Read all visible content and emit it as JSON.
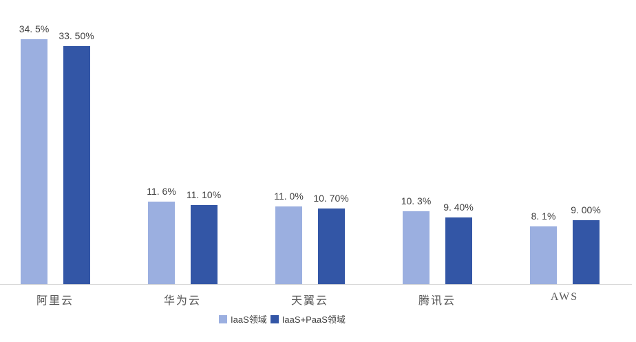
{
  "chart_data": {
    "type": "bar",
    "title": "",
    "xlabel": "",
    "ylabel": "",
    "grid": false,
    "legend_position": "bottom",
    "categories": [
      "阿里云",
      "华为云",
      "天翼云",
      "腾讯云",
      "AWS"
    ],
    "series": [
      {
        "name": "IaaS领域",
        "color": "#9BAFE0",
        "values": [
          34.5,
          11.6,
          11.0,
          10.3,
          8.1
        ],
        "labels": [
          "34. 5%",
          "11. 6%",
          "11. 0%",
          "10. 3%",
          "8. 1%"
        ]
      },
      {
        "name": "IaaS+PaaS领域",
        "color": "#3356A6",
        "values": [
          33.5,
          11.1,
          10.7,
          9.4,
          9.0
        ],
        "labels": [
          "33. 50%",
          "11. 10%",
          "10. 70%",
          "9. 40%",
          "9. 00%"
        ]
      }
    ],
    "colors": {
      "axis_line": "#D9D9D9",
      "data_label": "#404040",
      "category_label": "#595959",
      "legend_label": "#404040",
      "background": "#FFFFFF"
    }
  }
}
